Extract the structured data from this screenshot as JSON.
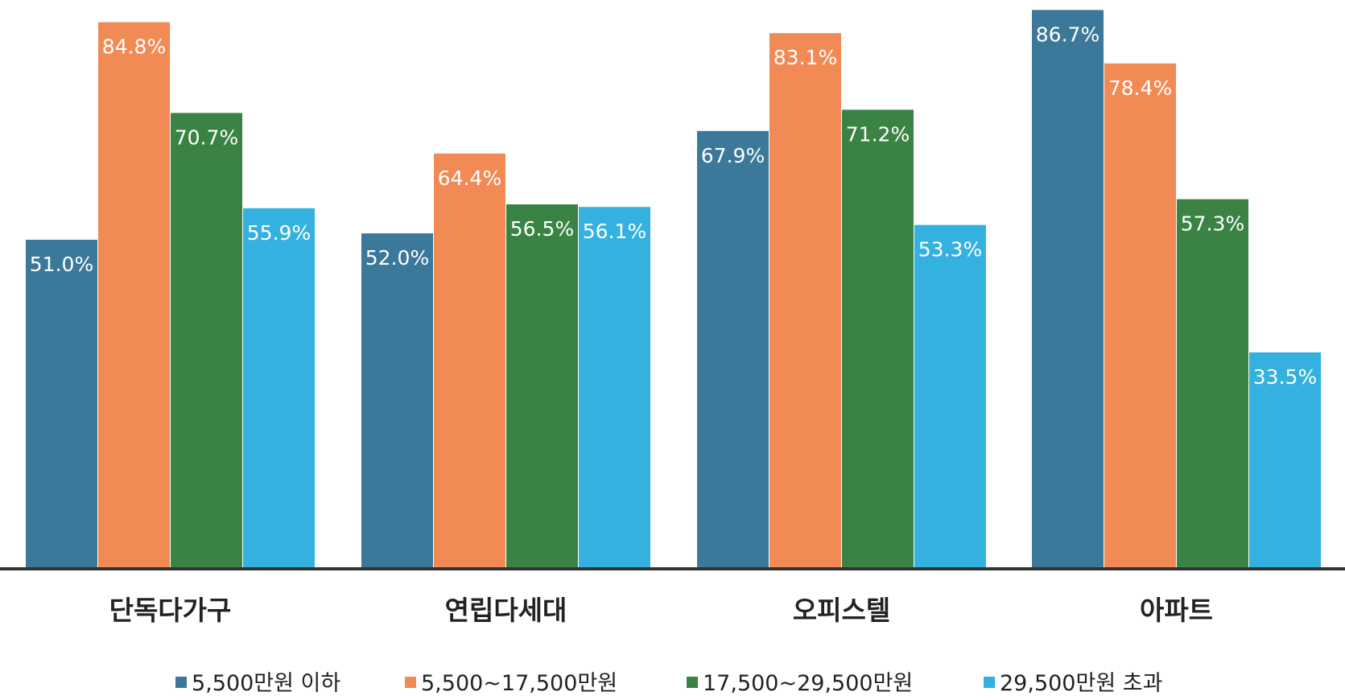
{
  "chart_data": {
    "type": "bar",
    "categories": [
      "단독다가구",
      "연립다세대",
      "오피스텔",
      "아파트"
    ],
    "series": [
      {
        "name": "5,500만원 이하",
        "color": "#3B7899",
        "values": [
          51.0,
          52.0,
          67.9,
          86.7
        ],
        "labels": [
          "51.0%",
          "52.0%",
          "67.9%",
          "86.7%"
        ]
      },
      {
        "name": "5,500~17,500만원",
        "color": "#F28A55",
        "values": [
          84.8,
          64.4,
          83.1,
          78.4
        ],
        "labels": [
          "84.8%",
          "64.4%",
          "83.1%",
          "78.4%"
        ]
      },
      {
        "name": "17,500~29,500만원",
        "color": "#3A8345",
        "values": [
          70.7,
          56.5,
          71.2,
          57.3
        ],
        "labels": [
          "70.7%",
          "56.5%",
          "71.2%",
          "57.3%"
        ]
      },
      {
        "name": "29,500만원 초과",
        "color": "#35B1E0",
        "values": [
          55.9,
          56.1,
          53.3,
          33.5
        ],
        "labels": [
          "55.9%",
          "56.1%",
          "53.3%",
          "33.5%"
        ]
      }
    ],
    "ylim": [
      0,
      100
    ],
    "grid": false,
    "legend_position": "bottom",
    "baseline_color": "#333333"
  }
}
